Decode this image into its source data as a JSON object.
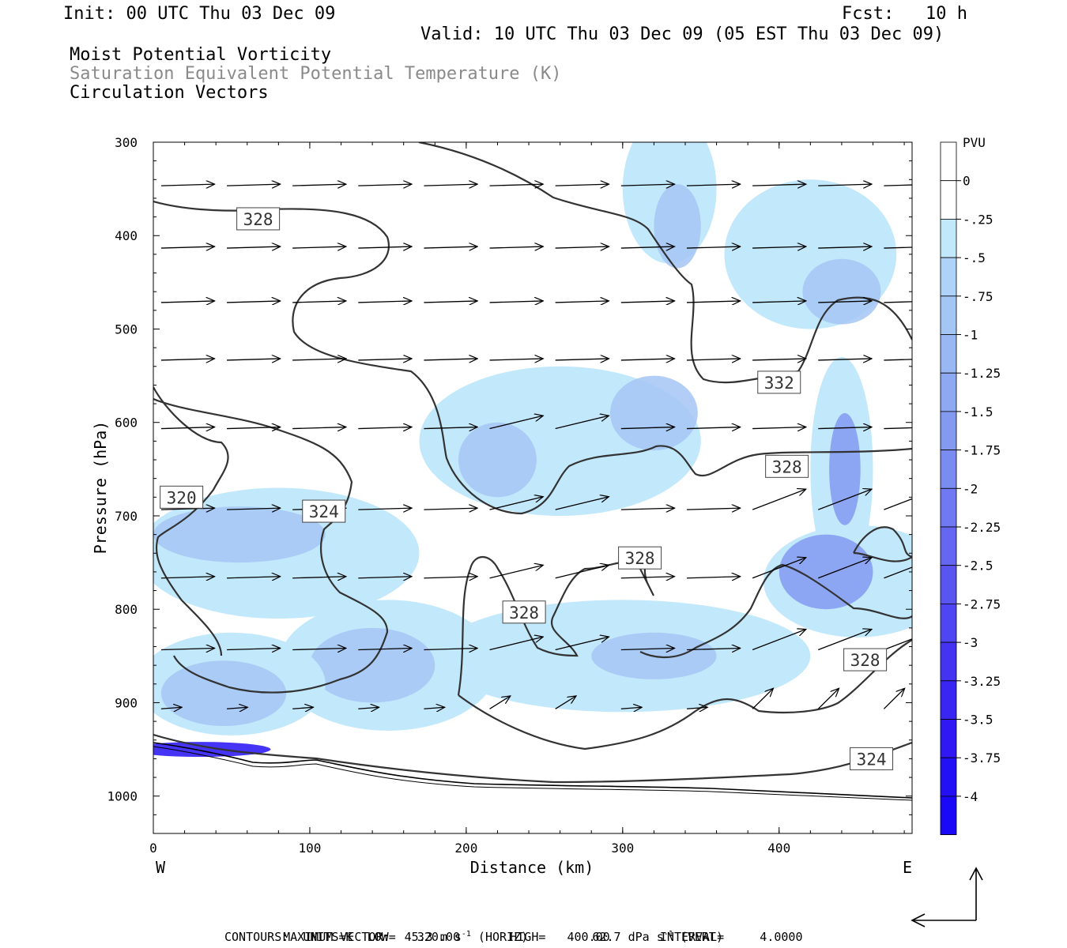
{
  "header": {
    "init": "Init: 00 UTC Thu 03 Dec 09",
    "fcst": "Fcst:   10 h",
    "valid": "Valid: 10 UTC Thu 03 Dec 09 (05 EST Thu 03 Dec 09)",
    "field1": "Moist Potential Vorticity",
    "field2": "Saturation Equivalent Potential Temperature (K)",
    "field3": "Circulation Vectors"
  },
  "footer": {
    "max_vector_label": "MAXIMUM VECTOR:",
    "horiz_value": "45.3 m s",
    "horiz_unit": "(HORIZ)",
    "vert_value": "62.7 dPa s",
    "vert_unit": "(VERT)",
    "superscript": "-1",
    "contours_line": "CONTOURS:  UNITS=K  LOW=   320.00       HIGH=   400.00       INTERVAL=     4.0000"
  },
  "chart_data": {
    "type": "cross-section",
    "xlabel": "Distance (km)",
    "ylabel": "Pressure (hPa)",
    "xlim": [
      0,
      485
    ],
    "ylim": [
      1040,
      300
    ],
    "x_ticks": [
      0,
      100,
      200,
      300,
      400
    ],
    "y_ticks": [
      300,
      400,
      500,
      600,
      700,
      800,
      900,
      1000
    ],
    "x_end_labels": {
      "left": "W",
      "right": "E"
    },
    "colorbar": {
      "unit": "PVU",
      "labels": [
        "0",
        "-.25",
        "-.5",
        "-.75",
        "-1",
        "-1.25",
        "-1.5",
        "-1.75",
        "-2",
        "-2.25",
        "-2.5",
        "-2.75",
        "-3",
        "-3.25",
        "-3.5",
        "-3.75",
        "-4"
      ],
      "colors": [
        "#ffffff",
        "#ffffff",
        "#c2e8fb",
        "#afd3f8",
        "#a4c6f5",
        "#99b8f3",
        "#8ea9f2",
        "#849af1",
        "#7a8bf1",
        "#7079f1",
        "#6567f1",
        "#5a55f1",
        "#4f45f2",
        "#4434f2",
        "#3a26f3",
        "#2f18f4",
        "#2410f5",
        "#1a08f7"
      ]
    },
    "contour_labels": [
      {
        "text": "328",
        "x": 67,
        "p": 382
      },
      {
        "text": "332",
        "x": 400,
        "p": 557
      },
      {
        "text": "328",
        "x": 405,
        "p": 647
      },
      {
        "text": "320",
        "x": 18,
        "p": 680
      },
      {
        "text": "324",
        "x": 109,
        "p": 695
      },
      {
        "text": "328",
        "x": 311,
        "p": 745
      },
      {
        "text": "328",
        "x": 237,
        "p": 803
      },
      {
        "text": "328",
        "x": 455,
        "p": 854
      },
      {
        "text": "324",
        "x": 459,
        "p": 960
      }
    ],
    "pv_shading": [
      {
        "level": 1,
        "cx": 80,
        "cy": 740,
        "rx": 90,
        "ry": 70
      },
      {
        "level": 2,
        "cx": 55,
        "cy": 720,
        "rx": 55,
        "ry": 30
      },
      {
        "level": 1,
        "cx": 330,
        "cy": 350,
        "rx": 30,
        "ry": 80
      },
      {
        "level": 2,
        "cx": 335,
        "cy": 390,
        "rx": 15,
        "ry": 45
      },
      {
        "level": 1,
        "cx": 420,
        "cy": 420,
        "rx": 55,
        "ry": 80
      },
      {
        "level": 2,
        "cx": 440,
        "cy": 460,
        "rx": 25,
        "ry": 35
      },
      {
        "level": 1,
        "cx": 260,
        "cy": 620,
        "rx": 90,
        "ry": 80
      },
      {
        "level": 2,
        "cx": 220,
        "cy": 640,
        "rx": 25,
        "ry": 40
      },
      {
        "level": 2,
        "cx": 320,
        "cy": 590,
        "rx": 28,
        "ry": 40
      },
      {
        "level": 1,
        "cx": 300,
        "cy": 850,
        "rx": 120,
        "ry": 60
      },
      {
        "level": 2,
        "cx": 320,
        "cy": 850,
        "rx": 40,
        "ry": 25
      },
      {
        "level": 1,
        "cx": 150,
        "cy": 860,
        "rx": 70,
        "ry": 70
      },
      {
        "level": 2,
        "cx": 140,
        "cy": 860,
        "rx": 40,
        "ry": 40
      },
      {
        "level": 1,
        "cx": 440,
        "cy": 650,
        "rx": 20,
        "ry": 120
      },
      {
        "level": 3,
        "cx": 442,
        "cy": 650,
        "rx": 10,
        "ry": 60
      },
      {
        "level": 1,
        "cx": 450,
        "cy": 770,
        "rx": 60,
        "ry": 60
      },
      {
        "level": 3,
        "cx": 430,
        "cy": 760,
        "rx": 30,
        "ry": 40
      },
      {
        "level": 1,
        "cx": 50,
        "cy": 880,
        "rx": 60,
        "ry": 55
      },
      {
        "level": 2,
        "cx": 45,
        "cy": 890,
        "rx": 40,
        "ry": 35
      },
      {
        "level": 4,
        "cx": 30,
        "cy": 950,
        "rx": 45,
        "ry": 8
      }
    ]
  }
}
